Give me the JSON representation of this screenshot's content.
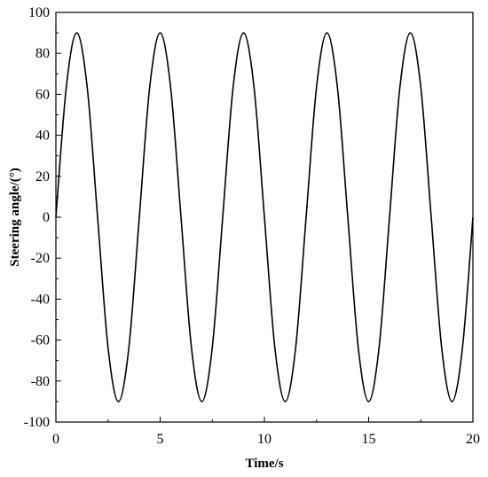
{
  "chart_data": {
    "type": "line",
    "title": "",
    "xlabel": "Time/s",
    "ylabel": "Steering angle/(°)",
    "xlim": [
      0,
      20
    ],
    "ylim": [
      -100,
      100
    ],
    "xticks": [
      0,
      5,
      10,
      15,
      20
    ],
    "yticks": [
      -100,
      -80,
      -60,
      -40,
      -20,
      0,
      20,
      40,
      60,
      80,
      100
    ],
    "xtick_labels": [
      "0",
      "5",
      "10",
      "15",
      "20"
    ],
    "ytick_labels": [
      "-100",
      "-80",
      "-60",
      "-40",
      "-20",
      "0",
      "20",
      "40",
      "60",
      "80",
      "100"
    ],
    "grid": false,
    "legend": "none",
    "series": [
      {
        "color": "#000000",
        "x": [
          0,
          0.5,
          1,
          1.5,
          2,
          2.5,
          3,
          3.5,
          4,
          4.5,
          5,
          5.5,
          6,
          6.5,
          7,
          7.5,
          8,
          8.5,
          9,
          9.5,
          10,
          10.5,
          11,
          11.5,
          12,
          12.5,
          13,
          13.5,
          14,
          14.5,
          15,
          15.5,
          16,
          16.5,
          17,
          17.5,
          18,
          18.5,
          19,
          19.5,
          20
        ],
        "y": [
          0,
          63.6,
          90,
          63.6,
          0,
          -63.6,
          -90,
          -63.6,
          0,
          63.6,
          90,
          63.6,
          0,
          -63.6,
          -90,
          -63.6,
          0,
          63.6,
          90,
          63.6,
          0,
          -63.6,
          -90,
          -63.6,
          0,
          63.6,
          90,
          63.6,
          0,
          -63.6,
          -90,
          -63.6,
          0,
          63.6,
          90,
          63.6,
          0,
          -63.6,
          -90,
          -63.6,
          0
        ]
      }
    ]
  }
}
